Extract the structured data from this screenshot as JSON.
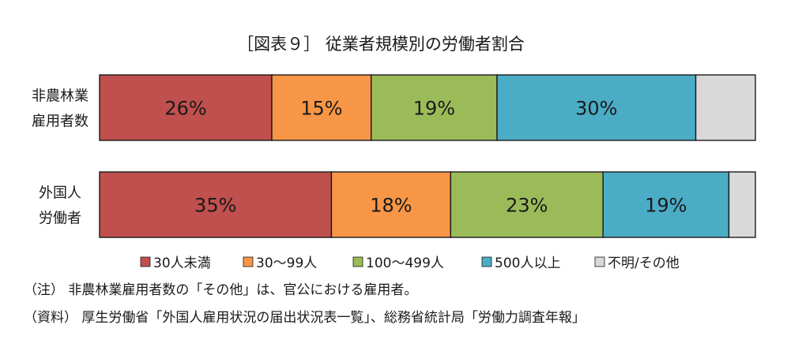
{
  "chart_data": {
    "type": "bar",
    "orientation": "horizontal",
    "stacked": "percent",
    "title": "［図表９］ 従業者規模別の労働者割合",
    "categories": [
      [
        "非農林業",
        "雇用者数"
      ],
      [
        "外国人",
        "労働者"
      ]
    ],
    "series": [
      {
        "name": "30人未満",
        "color": "#c0504d",
        "values": [
          26,
          35
        ]
      },
      {
        "name": "30～99人",
        "color": "#f79646",
        "values": [
          15,
          18
        ]
      },
      {
        "name": "100～499人",
        "color": "#9bbb59",
        "values": [
          19,
          23
        ]
      },
      {
        "name": "500人以上",
        "color": "#4bacc6",
        "values": [
          30,
          19
        ]
      },
      {
        "name": "不明/その他",
        "color": "#d9d9d9",
        "values": [
          9,
          4
        ]
      }
    ],
    "data_labels": [
      [
        "26%",
        "15%",
        "19%",
        "30%",
        ""
      ],
      [
        "35%",
        "18%",
        "23%",
        "19%",
        ""
      ]
    ],
    "legend_position": "bottom",
    "grid": false
  },
  "notes": {
    "note": "（注） 非農林業雇用者数の「その他」は、官公における雇用者。",
    "source": "（資料） 厚生労働省「外国人雇用状況の届出状況表一覧」、総務省統計局「労働力調査年報」"
  }
}
